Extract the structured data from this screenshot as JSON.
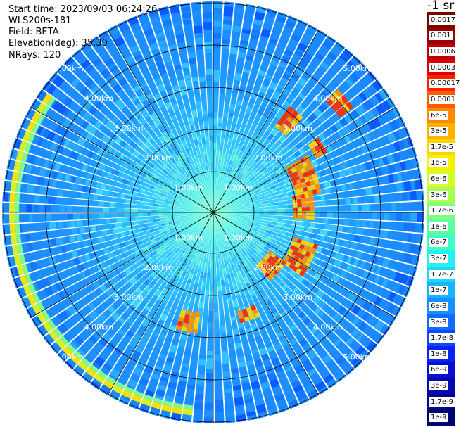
{
  "header": {
    "start_time": "Start time: 2023/09/03 06:24:26",
    "instrument": "WLS200s-181",
    "field": "Field: BETA",
    "elevation": "Elevation(deg): 35.30",
    "nrays": "NRays: 120"
  },
  "colorbar": {
    "unit": "-1 sr",
    "labels": [
      "0.0017",
      "0.001",
      "0.0006",
      "0.0003",
      "0.00017",
      "0.0001",
      "6e-5",
      "3e-5",
      "1.7e-5",
      "1e-5",
      "6e-6",
      "3e-6",
      "1.7e-6",
      "1e-6",
      "6e-7",
      "3e-7",
      "1.7e-7",
      "1e-7",
      "6e-8",
      "3e-8",
      "1.7e-8",
      "1e-8",
      "6e-9",
      "3e-9",
      "1.7e-9",
      "1e-9"
    ],
    "colors": [
      "#7a0000",
      "#9a0000",
      "#c00000",
      "#e00000",
      "#ff2000",
      "#ff5a00",
      "#ff8a00",
      "#ffb000",
      "#ffd400",
      "#f4f000",
      "#d0ff2a",
      "#a8ff50",
      "#80ff78",
      "#5cffa0",
      "#3cffc8",
      "#24f0f0",
      "#1cd8ff",
      "#18b4ff",
      "#1490ff",
      "#106cff",
      "#0c48ff",
      "#0a24f0",
      "#0810d0",
      "#0608b0",
      "#040490",
      "#030370"
    ]
  },
  "range_ring_labels": [
    "1.00km",
    "2.00km",
    "3.00km",
    "4.00km",
    "5.00km"
  ],
  "colors": {
    "background_blue": "#1a8cff",
    "ring_line": "#000000",
    "label_text": "#ffffff"
  }
}
